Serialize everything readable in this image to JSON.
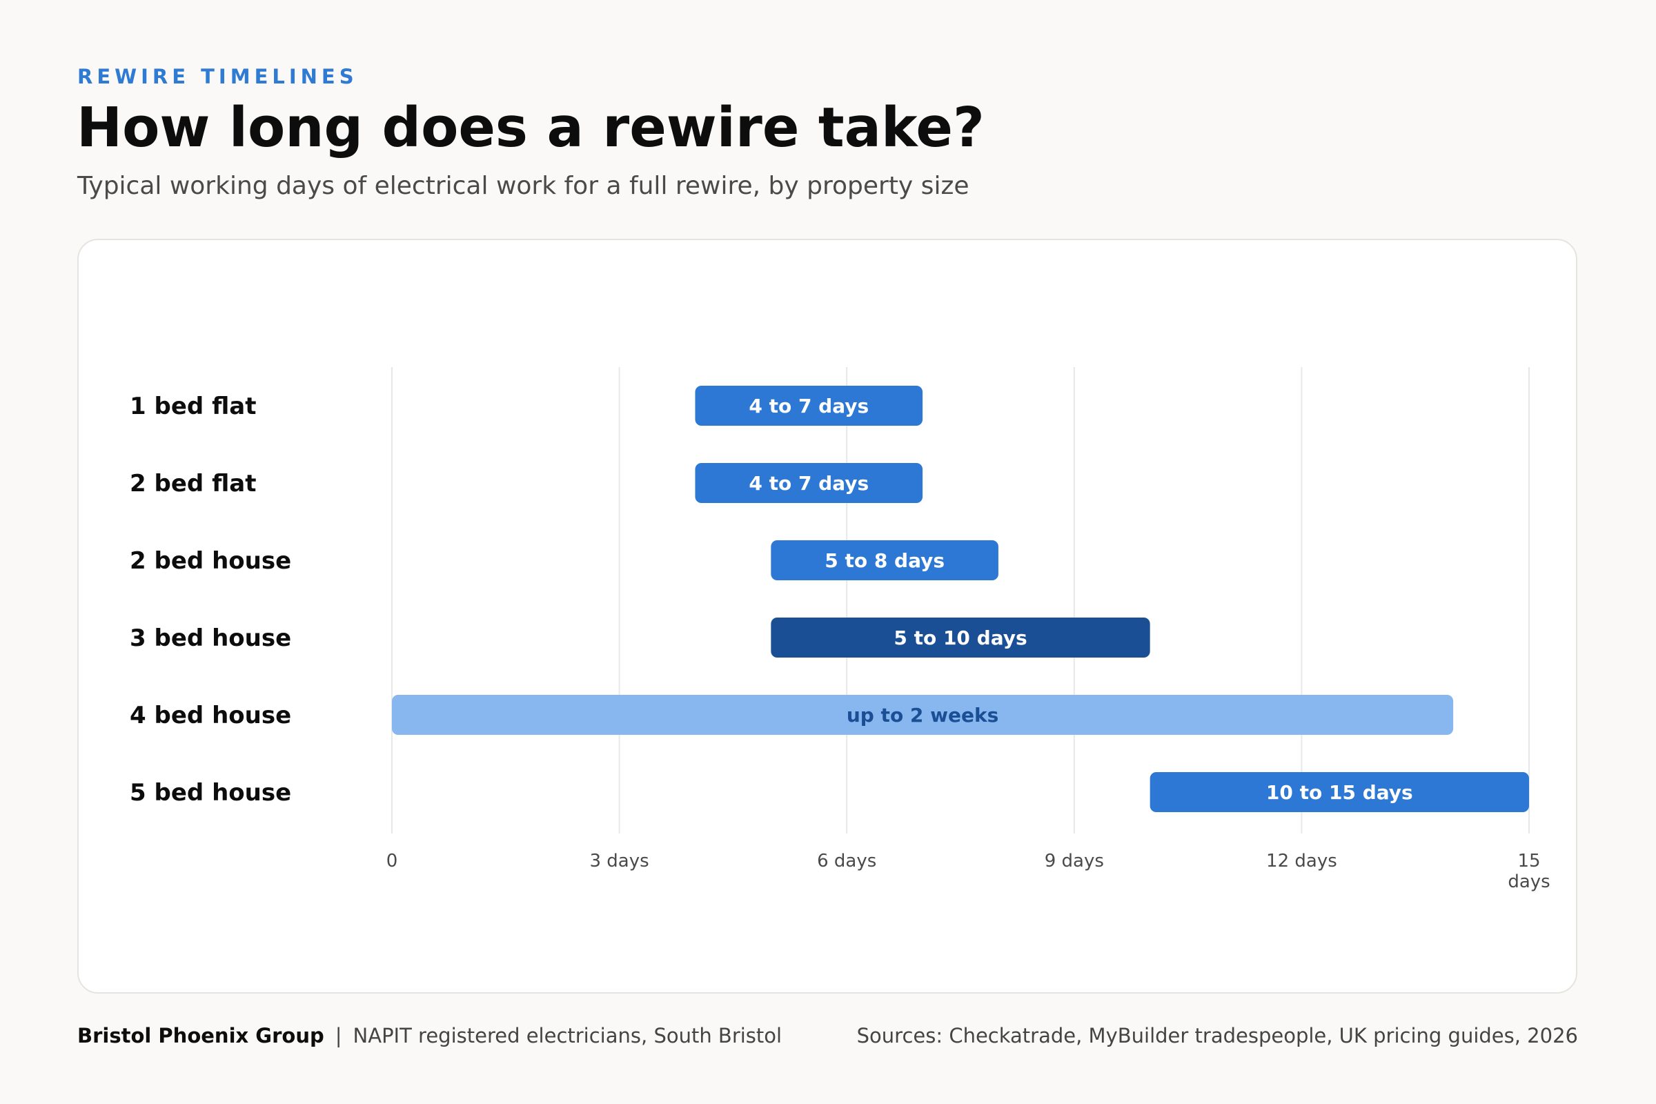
{
  "header": {
    "eyebrow": "REWIRE TIMELINES",
    "title": "How long does a rewire take?",
    "subtitle": "Typical working days of electrical work for a full rewire, by property size"
  },
  "footer": {
    "brand": "Bristol Phoenix Group",
    "separator": "|",
    "tagline": "NAPIT registered electricians, South Bristol",
    "sources": "Sources: Checkatrade, MyBuilder tradespeople, UK pricing guides, 2026"
  },
  "colors": {
    "accent": "#2f7bd4",
    "bar_standard": "#2c78d4",
    "bar_highlight": "#1a4f96",
    "bar_light": "#88b6ee",
    "bar_light_text": "#1a4f96",
    "grid": "#e8e8e8"
  },
  "chart_data": {
    "type": "bar",
    "orientation": "horizontal-range",
    "categories": [
      "1 bed flat",
      "2 bed flat",
      "2 bed house",
      "3 bed house",
      "4 bed house",
      "5 bed house"
    ],
    "ranges": [
      {
        "start": 4,
        "end": 7,
        "label": "4 to 7 days",
        "style": "standard"
      },
      {
        "start": 4,
        "end": 7,
        "label": "4 to 7 days",
        "style": "standard"
      },
      {
        "start": 5,
        "end": 8,
        "label": "5 to 8 days",
        "style": "standard"
      },
      {
        "start": 5,
        "end": 10,
        "label": "5 to 10 days",
        "style": "highlight"
      },
      {
        "start": 0,
        "end": 14,
        "label": "up to 2 weeks",
        "style": "light"
      },
      {
        "start": 10,
        "end": 15,
        "label": "10 to 15 days",
        "style": "standard"
      }
    ],
    "x_ticks": [
      {
        "value": 0,
        "label": "0"
      },
      {
        "value": 3,
        "label": "3 days"
      },
      {
        "value": 6,
        "label": "6 days"
      },
      {
        "value": 9,
        "label": "9 days"
      },
      {
        "value": 12,
        "label": "12 days"
      },
      {
        "value": 15,
        "label": "15 days"
      }
    ],
    "xlim": [
      0,
      15
    ],
    "grid": true,
    "legend": "none"
  }
}
